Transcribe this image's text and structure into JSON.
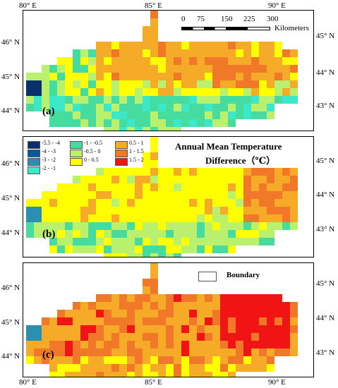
{
  "axes": {
    "top_ticks": [
      "80° E",
      "85° E",
      "90° E"
    ],
    "bottom_ticks": [
      "80° E",
      "85° E",
      "90° E"
    ],
    "left_ticks": [
      "46° N",
      "45° N",
      "44° N"
    ],
    "right_ticks": [
      "45° N",
      "44° N",
      "43° N"
    ]
  },
  "panels": [
    {
      "label": "(a)"
    },
    {
      "label": "(b)"
    },
    {
      "label": "(c)"
    }
  ],
  "scalebar": {
    "ticks": [
      "0",
      "75",
      "150",
      "225",
      "300"
    ],
    "unit": "Kilometers"
  },
  "legend": {
    "title_line1": "Annual Mean Temperature",
    "title_line2": "Difference（℃）",
    "items": [
      {
        "label": "-5.5 - -4",
        "color": "#08306b"
      },
      {
        "label": "-4 - -3",
        "color": "#08599b"
      },
      {
        "label": "-3 - -2",
        "color": "#2a8fb0"
      },
      {
        "label": "-2 - -1",
        "color": "#3ce8c8"
      },
      {
        "label": "-1 - -0.5",
        "color": "#46dca0"
      },
      {
        "label": "-0.5 - 0",
        "color": "#b9f06e"
      },
      {
        "label": "0 - 0.5",
        "color": "#ffff00"
      },
      {
        "label": "0.5 - 1",
        "color": "#f5aa28"
      },
      {
        "label": "1 - 1.5",
        "color": "#f07828"
      },
      {
        "label": "1.5 - 2",
        "color": "#f01414"
      }
    ]
  },
  "boundary_legend": {
    "label": "Boundary"
  }
}
